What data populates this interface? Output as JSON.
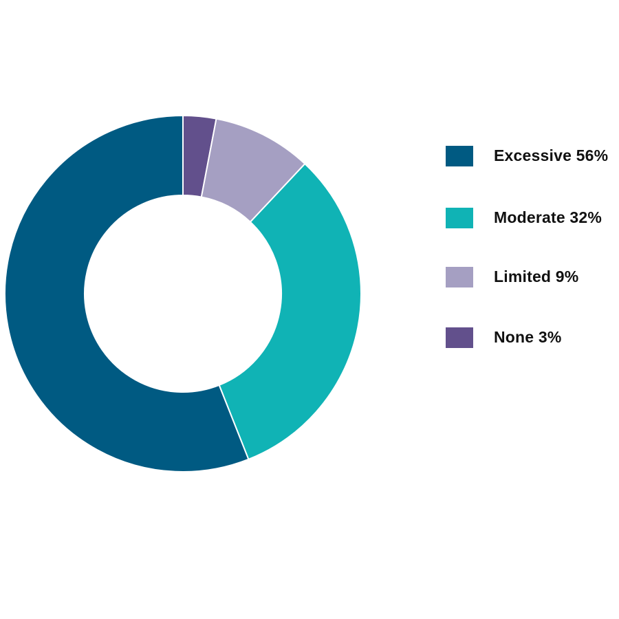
{
  "chart_data": {
    "type": "pie",
    "categories": [
      "Excessive",
      "Moderate",
      "Limited",
      "None"
    ],
    "values": [
      56,
      32,
      9,
      3
    ],
    "unit": "%",
    "title": "",
    "legend": {
      "placement": "right",
      "items": [
        {
          "label": "Excessive 56%",
          "color": "#005a82"
        },
        {
          "label": "Moderate 32%",
          "color": "#10b3b5"
        },
        {
          "label": "Limited 9%",
          "color": "#a59fc2"
        },
        {
          "label": "None 3%",
          "color": "#62508c"
        }
      ]
    },
    "colors": [
      "#005a82",
      "#10b3b5",
      "#a59fc2",
      "#62508c"
    ],
    "donut": true
  }
}
